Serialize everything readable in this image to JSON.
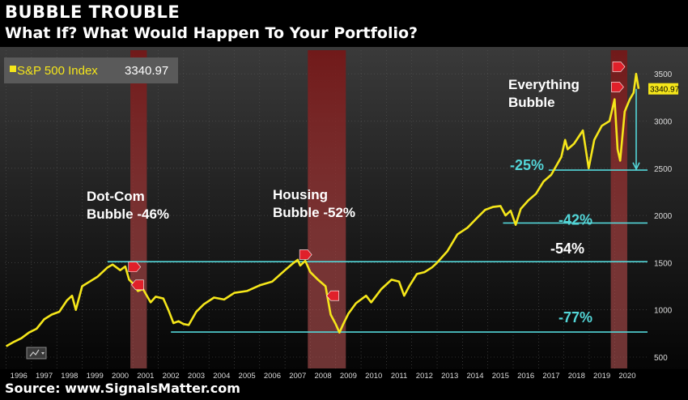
{
  "header": {
    "title": "BUBBLE TROUBLE",
    "subtitle": "What If? What Would Happen To Your Portfolio?"
  },
  "footer": {
    "source": "Source: www.SignalsMatter.com"
  },
  "chart_data": {
    "type": "line",
    "legend": {
      "label": "S&P 500 Index",
      "value": "3340.97",
      "placement": "top-left"
    },
    "last_value_label": "3340.97",
    "colors": {
      "line": "#f5e61a",
      "background_top": "#3a3a3a",
      "background_bottom": "#000000",
      "support_line": "#53d6d8",
      "shade": "#b32a2a",
      "marker": "#e0202a",
      "grid": "#555555"
    },
    "xlim": [
      1995.95,
      2021.3
    ],
    "ylim": [
      380,
      3750
    ],
    "yticks": [
      500,
      1000,
      1500,
      2000,
      2500,
      3000,
      3500
    ],
    "xticks": [
      "1996",
      "1997",
      "1998",
      "1999",
      "2000",
      "2001",
      "2002",
      "2003",
      "2004",
      "2005",
      "2006",
      "2007",
      "2008",
      "2009",
      "2010",
      "2011",
      "2012",
      "2013",
      "2014",
      "2015",
      "2016",
      "2017",
      "2018",
      "2019",
      "2020"
    ],
    "grid": true,
    "series": [
      {
        "name": "S&P 500 Index",
        "x": [
          1996.0,
          1996.3,
          1996.6,
          1996.9,
          1997.2,
          1997.5,
          1997.8,
          1998.1,
          1998.4,
          1998.6,
          1998.75,
          1999.0,
          1999.3,
          1999.6,
          1999.8,
          2000.0,
          2000.2,
          2000.5,
          2000.7,
          2000.85,
          2001.0,
          2001.2,
          2001.4,
          2001.7,
          2001.9,
          2002.2,
          2002.4,
          2002.6,
          2002.8,
          2003.0,
          2003.2,
          2003.5,
          2003.8,
          2004.2,
          2004.6,
          2005.0,
          2005.5,
          2006.0,
          2006.5,
          2007.0,
          2007.3,
          2007.5,
          2007.6,
          2007.8,
          2008.0,
          2008.3,
          2008.6,
          2008.8,
          2009.0,
          2009.15,
          2009.3,
          2009.5,
          2009.8,
          2010.2,
          2010.4,
          2010.6,
          2010.8,
          2011.2,
          2011.5,
          2011.7,
          2011.9,
          2012.2,
          2012.5,
          2012.8,
          2013.0,
          2013.4,
          2013.8,
          2014.2,
          2014.6,
          2014.9,
          2015.2,
          2015.5,
          2015.7,
          2015.9,
          2016.1,
          2016.3,
          2016.6,
          2016.9,
          2017.2,
          2017.5,
          2017.9,
          2018.05,
          2018.15,
          2018.4,
          2018.75,
          2018.98,
          2019.2,
          2019.5,
          2019.8,
          2020.0,
          2020.12,
          2020.22,
          2020.4,
          2020.6,
          2020.75,
          2020.85,
          2020.95
        ],
        "values": [
          615,
          660,
          700,
          760,
          800,
          900,
          950,
          980,
          1100,
          1150,
          1000,
          1250,
          1300,
          1350,
          1400,
          1450,
          1480,
          1420,
          1460,
          1320,
          1280,
          1200,
          1220,
          1080,
          1140,
          1120,
          1000,
          860,
          880,
          850,
          840,
          980,
          1060,
          1130,
          1110,
          1180,
          1200,
          1260,
          1300,
          1420,
          1490,
          1530,
          1470,
          1520,
          1400,
          1320,
          1250,
          950,
          850,
          760,
          850,
          960,
          1070,
          1150,
          1080,
          1150,
          1220,
          1320,
          1300,
          1150,
          1250,
          1380,
          1400,
          1450,
          1500,
          1620,
          1800,
          1870,
          1980,
          2060,
          2090,
          2100,
          2000,
          2050,
          1900,
          2070,
          2160,
          2230,
          2360,
          2430,
          2620,
          2800,
          2700,
          2760,
          2900,
          2500,
          2800,
          2950,
          3000,
          3230,
          2700,
          2580,
          3100,
          3230,
          3300,
          3500,
          3340.97
        ]
      }
    ],
    "bubble_shading": [
      {
        "name": "Dot-Com",
        "x_start": 2000.9,
        "x_end": 2001.55
      },
      {
        "name": "Housing",
        "x_start": 2007.9,
        "x_end": 2009.4
      },
      {
        "name": "Everything",
        "x_start": 2019.85,
        "x_end": 2020.5
      }
    ],
    "support_levels": [
      {
        "label": "-77%",
        "value": 765,
        "x_start": 2002.5,
        "color": "#53d6d8"
      },
      {
        "label": "-54%",
        "value": 1510,
        "x_start": 2000.0,
        "color": "#ffffff"
      },
      {
        "label": "-42%",
        "value": 1920,
        "x_start": 2015.6,
        "color": "#53d6d8"
      },
      {
        "label": "-25%",
        "value": 2480,
        "x_start": 2017.4,
        "color": "#53d6d8"
      }
    ],
    "annotations": [
      {
        "line1": "Dot-Com",
        "line2": "Bubble -46%"
      },
      {
        "line1": "Housing",
        "line2": "Bubble -52%"
      },
      {
        "line1": "Everything",
        "line2": "Bubble"
      }
    ],
    "markers": [
      {
        "x": 2001.05,
        "y": 1455,
        "dir": "right"
      },
      {
        "x": 2001.2,
        "y": 1265,
        "dir": "left"
      },
      {
        "x": 2007.8,
        "y": 1585,
        "dir": "right"
      },
      {
        "x": 2008.9,
        "y": 1150,
        "dir": "left"
      },
      {
        "x": 2020.15,
        "y": 3575,
        "dir": "right"
      },
      {
        "x": 2020.1,
        "y": 3360,
        "dir": "right"
      }
    ]
  }
}
